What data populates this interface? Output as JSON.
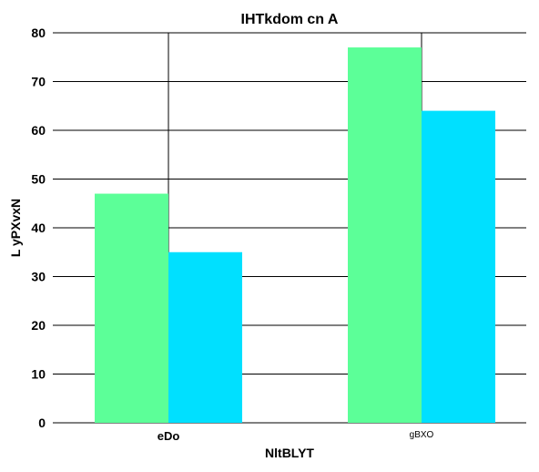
{
  "chart_data": {
    "type": "bar",
    "title": "IHTkdom cn A",
    "xlabel": "NltBLYT",
    "ylabel": "L yPXvxN",
    "categories": [
      "eDo",
      "gBXO"
    ],
    "series": [
      {
        "values": [
          47,
          77
        ],
        "color": "#5cff98"
      },
      {
        "values": [
          35,
          64
        ],
        "color": "#00e0ff"
      }
    ],
    "ylim": [
      0,
      80
    ],
    "yticks": [
      0,
      10,
      20,
      30,
      40,
      50,
      60,
      70,
      80
    ],
    "grid": true
  }
}
